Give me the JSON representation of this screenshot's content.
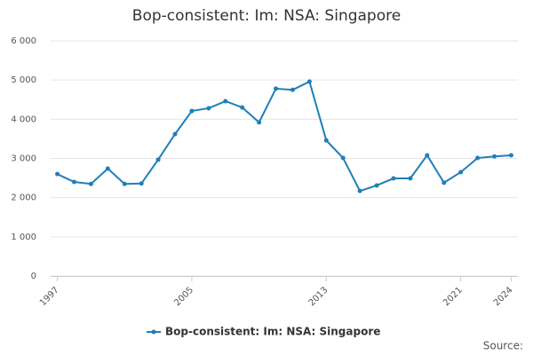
{
  "chart_data": {
    "type": "line",
    "title": "Bop-consistent: Im: NSA: Singapore",
    "x": [
      1997,
      1998,
      1999,
      2000,
      2001,
      2002,
      2003,
      2004,
      2005,
      2006,
      2007,
      2008,
      2009,
      2010,
      2011,
      2012,
      2013,
      2014,
      2015,
      2016,
      2017,
      2018,
      2019,
      2020,
      2021,
      2022,
      2023,
      2024
    ],
    "series": [
      {
        "name": "Bop-consistent: Im: NSA: Singapore",
        "color": "#1f7fb8",
        "values": [
          2600,
          2400,
          2350,
          2740,
          2350,
          2360,
          2970,
          3620,
          4210,
          4280,
          4460,
          4300,
          3920,
          4780,
          4750,
          4960,
          3460,
          3010,
          2170,
          2310,
          2490,
          2490,
          3080,
          2380,
          2650,
          3010,
          3050,
          3080
        ]
      }
    ],
    "xlim": [
      1996.6,
      2024.4
    ],
    "xticks": [
      1997,
      2005,
      2013,
      2021,
      2024
    ],
    "ylim": [
      0,
      6000
    ],
    "yticks": [
      0,
      {
        "value": 1000,
        "label": "1 000"
      },
      {
        "value": 2000,
        "label": "2 000"
      },
      {
        "value": 3000,
        "label": "3 000"
      },
      {
        "value": 4000,
        "label": "4 000"
      },
      {
        "value": 5000,
        "label": "5 000"
      },
      {
        "value": 6000,
        "label": "6 000"
      }
    ],
    "grid": true,
    "legend": "bottom",
    "source": "Source:"
  }
}
